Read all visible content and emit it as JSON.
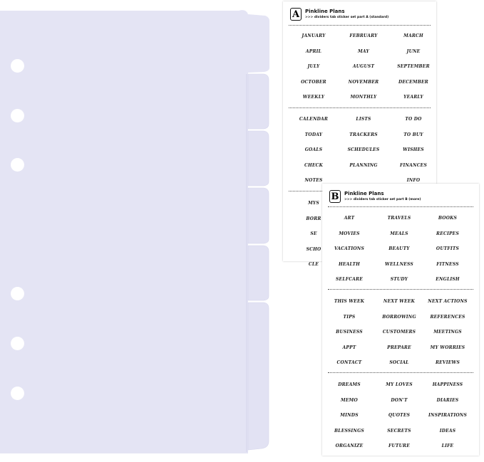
{
  "divider": {
    "color": "#e4e4f4",
    "tab_count": 6,
    "holes": 6
  },
  "sheet_a": {
    "logo_letter": "A",
    "brand": "Pinkline Plans",
    "subtitle": ">>> dividers tab sticker set part A (standard)",
    "sections": [
      [
        [
          "JANUARY",
          "FEBRUARY",
          "MARCH"
        ],
        [
          "APRIL",
          "MAY",
          "JUNE"
        ],
        [
          "JULY",
          "AUGUST",
          "SEPTEMBER"
        ],
        [
          "OCTOBER",
          "NOVEMBER",
          "DECEMBER"
        ],
        [
          "WEEKLY",
          "MONTHLY",
          "YEARLY"
        ]
      ],
      [
        [
          "CALENDAR",
          "LISTS",
          "TO DO"
        ],
        [
          "TODAY",
          "TRACKERS",
          "TO BUY"
        ],
        [
          "GOALS",
          "SCHEDULES",
          "WISHES"
        ],
        [
          "CHECK",
          "PLANNING",
          "FINANCES"
        ],
        [
          "NOTES",
          "",
          "INFO"
        ]
      ],
      [
        [
          "MYS"
        ],
        [
          "BORR"
        ],
        [
          "SE"
        ],
        [
          "SCHO"
        ],
        [
          "CLE"
        ]
      ]
    ]
  },
  "sheet_b": {
    "logo_letter": "B",
    "brand": "Pinkline Plans",
    "subtitle": ">>> dividers tab sticker set part B (more)",
    "sections": [
      [
        [
          "ART",
          "TRAVELS",
          "BOOKS"
        ],
        [
          "MOVIES",
          "MEALS",
          "RECIPES"
        ],
        [
          "VACATIONS",
          "BEAUTY",
          "OUTFITS"
        ],
        [
          "HEALTH",
          "WELLNESS",
          "FITNESS"
        ],
        [
          "SELFCARE",
          "STUDY",
          "ENGLISH"
        ]
      ],
      [
        [
          "THIS WEEK",
          "NEXT WEEK",
          "NEXT ACTIONS"
        ],
        [
          "TIPS",
          "BORROWING",
          "REFERENCES"
        ],
        [
          "BUSINESS",
          "CUSTOMERS",
          "MEETINGS"
        ],
        [
          "APPT",
          "PREPARE",
          "MY WORRIES"
        ],
        [
          "CONTACT",
          "SOCIAL",
          "REVIEWS"
        ]
      ],
      [
        [
          "DREAMS",
          "MY LOVES",
          "HAPPINESS"
        ],
        [
          "MEMO",
          "DON'T",
          "DIARIES"
        ],
        [
          "MINDS",
          "QUOTES",
          "INSPIRATIONS"
        ],
        [
          "BLESSINGS",
          "SECRETS",
          "IDEAS"
        ],
        [
          "ORGANIZE",
          "FUTURE",
          "LIFE"
        ]
      ]
    ]
  }
}
